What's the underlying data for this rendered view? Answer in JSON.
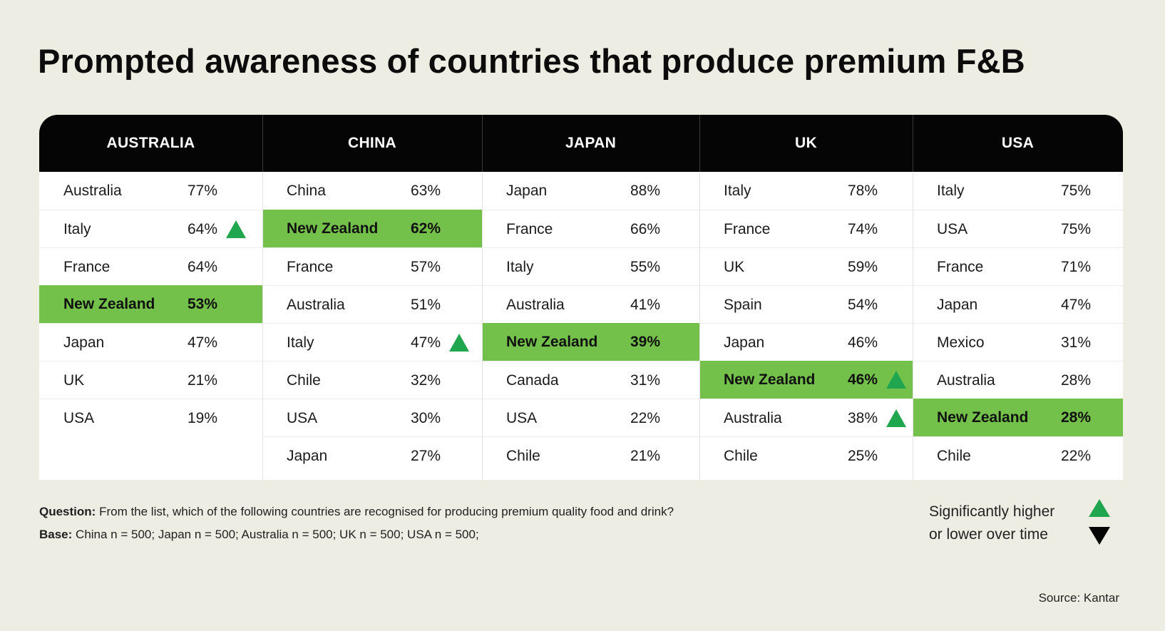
{
  "colors": {
    "background": "#EEEDE3",
    "header": "#050505",
    "highlight": "#73C04A",
    "up_arrow": "#1FA64E",
    "down_arrow": "#050505"
  },
  "title": "Prompted awareness of countries that produce premium F&B",
  "chart_data": {
    "type": "table",
    "title": "Prompted awareness of countries that produce premium F&B",
    "columns": [
      {
        "market": "AUSTRALIA",
        "rows": [
          {
            "country": "Australia",
            "value": "77%"
          },
          {
            "country": "Italy",
            "value": "64%",
            "trend": "up"
          },
          {
            "country": "France",
            "value": "64%"
          },
          {
            "country": "New Zealand",
            "value": "53%",
            "highlight": true
          },
          {
            "country": "Japan",
            "value": "47%"
          },
          {
            "country": "UK",
            "value": "21%"
          },
          {
            "country": "USA",
            "value": "19%"
          }
        ]
      },
      {
        "market": "CHINA",
        "rows": [
          {
            "country": "China",
            "value": "63%"
          },
          {
            "country": "New Zealand",
            "value": "62%",
            "highlight": true
          },
          {
            "country": "France",
            "value": "57%"
          },
          {
            "country": "Australia",
            "value": "51%"
          },
          {
            "country": "Italy",
            "value": "47%",
            "trend": "up"
          },
          {
            "country": "Chile",
            "value": "32%"
          },
          {
            "country": "USA",
            "value": "30%"
          },
          {
            "country": "Japan",
            "value": "27%"
          }
        ]
      },
      {
        "market": "JAPAN",
        "rows": [
          {
            "country": "Japan",
            "value": "88%"
          },
          {
            "country": "France",
            "value": "66%"
          },
          {
            "country": "Italy",
            "value": "55%"
          },
          {
            "country": "Australia",
            "value": "41%"
          },
          {
            "country": "New Zealand",
            "value": "39%",
            "highlight": true
          },
          {
            "country": "Canada",
            "value": "31%"
          },
          {
            "country": "USA",
            "value": "22%"
          },
          {
            "country": "Chile",
            "value": "21%"
          }
        ]
      },
      {
        "market": "UK",
        "rows": [
          {
            "country": "Italy",
            "value": "78%"
          },
          {
            "country": "France",
            "value": "74%"
          },
          {
            "country": "UK",
            "value": "59%"
          },
          {
            "country": "Spain",
            "value": "54%"
          },
          {
            "country": "Japan",
            "value": "46%"
          },
          {
            "country": "New Zealand",
            "value": "46%",
            "highlight": true,
            "trend": "up"
          },
          {
            "country": "Australia",
            "value": "38%",
            "trend": "up"
          },
          {
            "country": "Chile",
            "value": "25%"
          }
        ]
      },
      {
        "market": "USA",
        "rows": [
          {
            "country": "Italy",
            "value": "75%"
          },
          {
            "country": "USA",
            "value": "75%"
          },
          {
            "country": "France",
            "value": "71%"
          },
          {
            "country": "Japan",
            "value": "47%"
          },
          {
            "country": "Mexico",
            "value": "31%"
          },
          {
            "country": "Australia",
            "value": "28%"
          },
          {
            "country": "New Zealand",
            "value": "28%",
            "highlight": true
          },
          {
            "country": "Chile",
            "value": "22%"
          }
        ]
      }
    ]
  },
  "notes": {
    "question_label": "Question:",
    "question_text": " From the list, which of the following countries are recognised for producing premium quality food and drink?",
    "base_label": "Base:",
    "base_text": " China n = 500; Japan n = 500; Australia n = 500; UK n = 500; USA n = 500;"
  },
  "legend": {
    "line1": "Significantly higher",
    "line2": "or lower over time"
  },
  "source": "Source: Kantar"
}
